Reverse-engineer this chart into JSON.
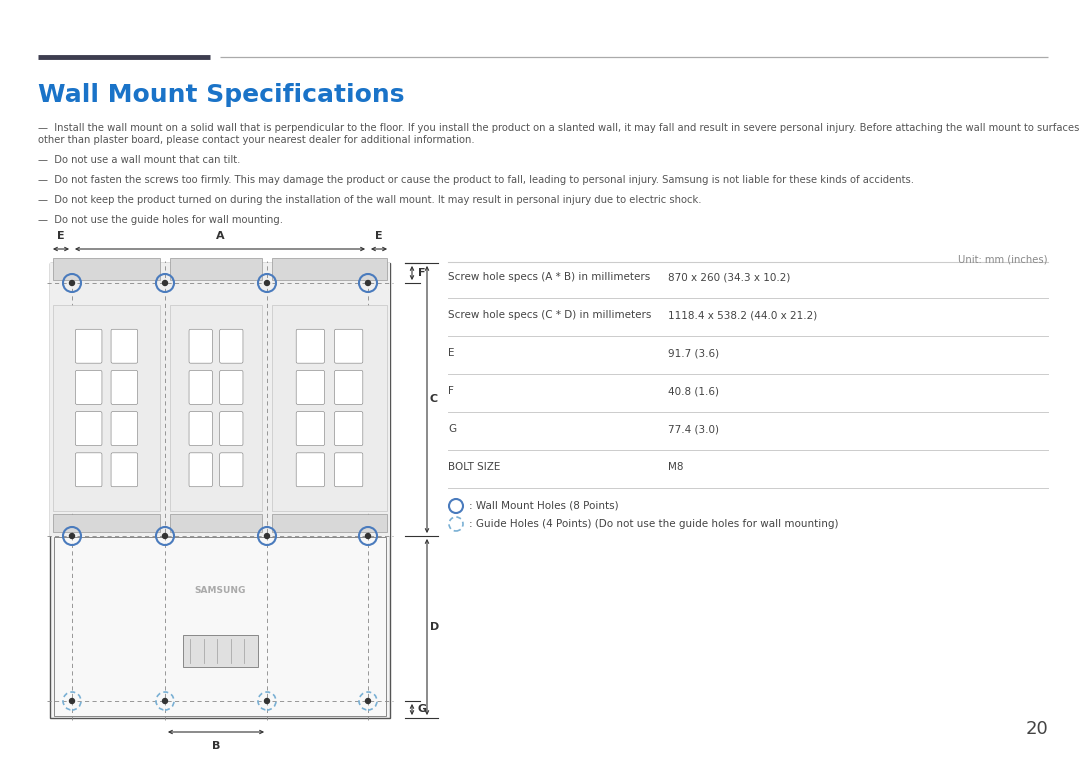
{
  "title": "Wall Mount Specifications",
  "title_color": "#1a73c8",
  "title_fontsize": 18,
  "header_line_left_color": "#3d3d4f",
  "header_line_right_color": "#aaaaaa",
  "bg_color": "#ffffff",
  "warning_texts": [
    [
      "—",
      "Install the wall mount on a solid wall that is perpendicular to the floor. If you install the product on a slanted wall, it may fall and result in severe personal injury. Before attaching the wall mount to surfaces other than plaster board, please contact your nearest dealer for additional information."
    ],
    [
      "—",
      "Do not use a wall mount that can tilt."
    ],
    [
      "—",
      "Do not fasten the screws too firmly. This may damage the product or cause the product to fall, leading to personal injury. Samsung is not liable for these kinds of accidents."
    ],
    [
      "—",
      "Do not keep the product turned on during the installation of the wall mount. It may result in personal injury due to electric shock."
    ],
    [
      "—",
      "Do not use the guide holes for wall mounting."
    ]
  ],
  "table_unit": "Unit: mm (inches)",
  "table_rows": [
    [
      "Screw hole specs (A * B) in millimeters",
      "870 x 260 (34.3 x 10.2)"
    ],
    [
      "Screw hole specs (C * D) in millimeters",
      "1118.4 x 538.2 (44.0 x 21.2)"
    ],
    [
      "E",
      "91.7 (3.6)"
    ],
    [
      "F",
      "40.8 (1.6)"
    ],
    [
      "G",
      "77.4 (3.0)"
    ],
    [
      "BOLT SIZE",
      "M8"
    ]
  ],
  "legend1": ": Wall Mount Holes (8 Points)",
  "legend2": ": Guide Holes (4 Points) (Do not use the guide holes for wall mounting)",
  "page_number": "20",
  "solid_circle_color": "#4a7bbd",
  "dashed_circle_color": "#7ab0d4",
  "line_color": "#555555",
  "dim_line_color": "#333333"
}
